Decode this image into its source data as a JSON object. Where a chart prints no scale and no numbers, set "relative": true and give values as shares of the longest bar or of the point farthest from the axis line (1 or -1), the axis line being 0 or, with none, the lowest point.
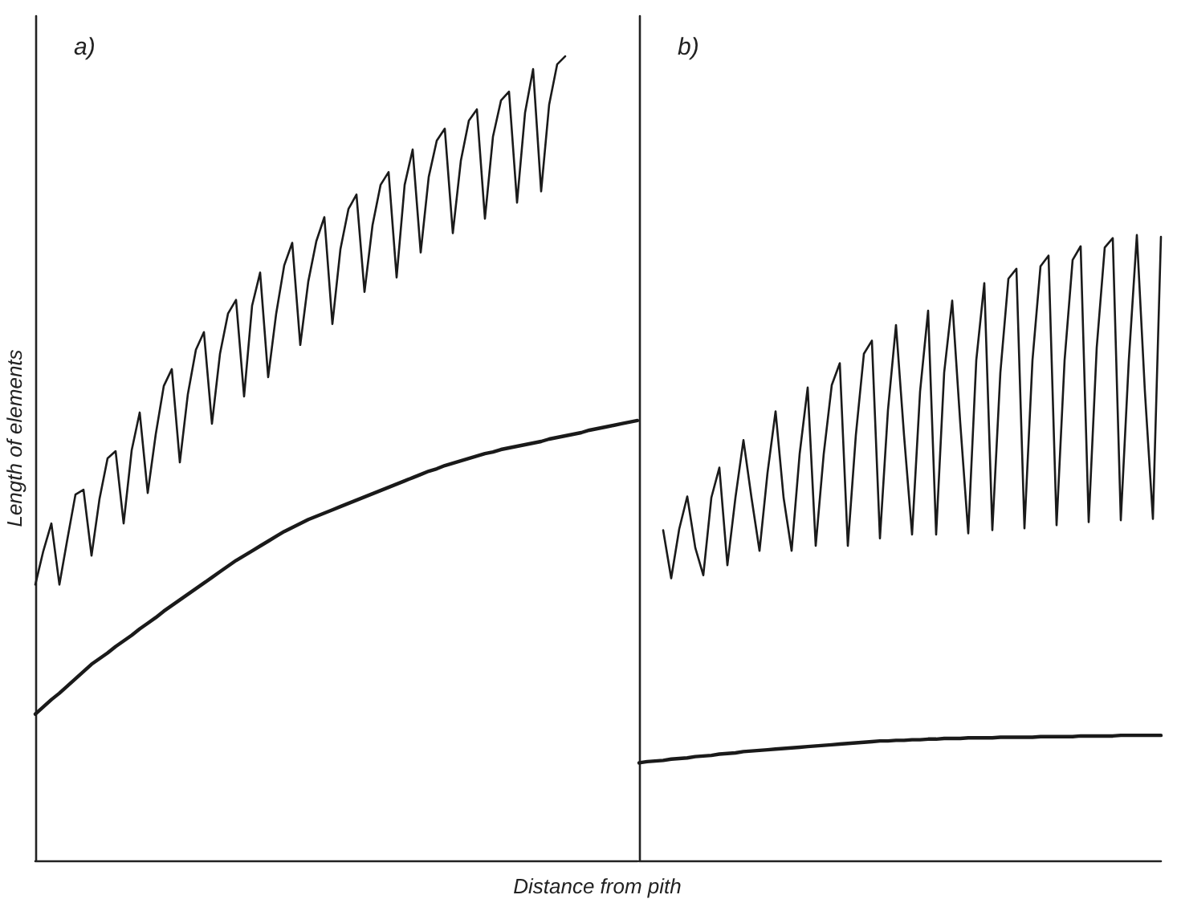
{
  "chart_data": [
    {
      "type": "line",
      "relative": true,
      "xlabel": "Distance from pith",
      "ylabel": "Length of elements",
      "annotations": [
        "a)"
      ],
      "marker": "none",
      "line_style": "solid",
      "categories": [
        null,
        null,
        null,
        null,
        null,
        null,
        null,
        null,
        null,
        null,
        null,
        null,
        null,
        null,
        null,
        null,
        null,
        null,
        null,
        null,
        null,
        null,
        null,
        null,
        null,
        null,
        null,
        null,
        null,
        null,
        null,
        null,
        null,
        null,
        null,
        null,
        null,
        null,
        null,
        null,
        null,
        null,
        null,
        null,
        null,
        null,
        null,
        null,
        null,
        null,
        null,
        null,
        null,
        null,
        null,
        null,
        null,
        null,
        null,
        null,
        null,
        null,
        null,
        null,
        null,
        null,
        null,
        null,
        null,
        null,
        null,
        null,
        null,
        null,
        null,
        null
      ],
      "series": [
        {
          "color": "#1a1a1a",
          "values": [
            0.343,
            0.385,
            0.419,
            0.343,
            0.4,
            0.455,
            0.461,
            0.379,
            0.45,
            0.5,
            0.509,
            0.419,
            0.51,
            0.557,
            0.457,
            0.53,
            0.59,
            0.611,
            0.495,
            0.58,
            0.635,
            0.657,
            0.543,
            0.63,
            0.68,
            0.697,
            0.577,
            0.69,
            0.731,
            0.601,
            0.68,
            0.74,
            0.768,
            0.641,
            0.72,
            0.77,
            0.8,
            0.667,
            0.76,
            0.81,
            0.828,
            0.707,
            0.79,
            0.84,
            0.856,
            0.725,
            0.84,
            0.884,
            0.756,
            0.85,
            0.895,
            0.91,
            0.78,
            0.87,
            0.92,
            0.934,
            0.798,
            0.9,
            0.945,
            0.956,
            0.818,
            0.93,
            0.984,
            0.832,
            0.94,
            0.99,
            1,
            null,
            null,
            null,
            null,
            null,
            null,
            null,
            null,
            null
          ]
        },
        {
          "color": "#1a1a1a",
          "values": [
            0.182,
            0.191,
            0.2,
            0.208,
            0.217,
            0.226,
            0.235,
            0.244,
            0.251,
            0.258,
            0.266,
            0.273,
            0.28,
            0.288,
            0.295,
            0.302,
            0.31,
            0.317,
            0.324,
            0.331,
            0.338,
            0.345,
            0.352,
            0.359,
            0.366,
            0.373,
            0.379,
            0.385,
            0.391,
            0.397,
            0.403,
            0.409,
            0.414,
            0.419,
            0.424,
            0.428,
            0.432,
            0.436,
            0.44,
            0.444,
            0.448,
            0.452,
            0.456,
            0.46,
            0.464,
            0.468,
            0.472,
            0.476,
            0.48,
            0.484,
            0.487,
            0.491,
            0.494,
            0.497,
            0.5,
            0.503,
            0.506,
            0.508,
            0.511,
            0.513,
            0.515,
            0.517,
            0.519,
            0.521,
            0.524,
            0.526,
            0.528,
            0.53,
            0.532,
            0.535,
            0.537,
            0.539,
            0.541,
            0.543,
            0.545,
            0.547
          ]
        }
      ]
    },
    {
      "type": "line",
      "relative": true,
      "annotations": [
        "b)"
      ],
      "marker": "none",
      "line_style": "solid",
      "categories": [
        null,
        null,
        null,
        null,
        null,
        null,
        null,
        null,
        null,
        null,
        null,
        null,
        null,
        null,
        null,
        null,
        null,
        null,
        null,
        null,
        null,
        null,
        null,
        null,
        null,
        null,
        null,
        null,
        null,
        null,
        null,
        null,
        null,
        null,
        null,
        null,
        null,
        null,
        null,
        null,
        null,
        null,
        null,
        null,
        null,
        null,
        null,
        null,
        null,
        null,
        null,
        null,
        null,
        null,
        null,
        null,
        null,
        null,
        null,
        null,
        null,
        null,
        null,
        null,
        null,
        null
      ],
      "series": [
        {
          "color": "#1a1a1a",
          "values": [
            null,
            null,
            null,
            0.528,
            0.451,
            0.53,
            0.582,
            0.5,
            0.456,
            0.58,
            0.628,
            0.472,
            0.58,
            0.672,
            0.58,
            0.495,
            0.62,
            0.718,
            0.58,
            0.495,
            0.65,
            0.756,
            0.503,
            0.65,
            0.76,
            0.795,
            0.503,
            0.68,
            0.81,
            0.831,
            0.515,
            0.72,
            0.856,
            0.68,
            0.521,
            0.75,
            0.879,
            0.521,
            0.78,
            0.895,
            0.7,
            0.523,
            0.8,
            0.923,
            0.528,
            0.78,
            0.93,
            0.946,
            0.531,
            0.8,
            0.95,
            0.967,
            0.536,
            0.8,
            0.96,
            0.982,
            0.541,
            0.82,
            0.98,
            0.995,
            0.544,
            0.8,
            1,
            0.75,
            0.546,
            0.997
          ]
        },
        {
          "color": "#1a1a1a",
          "values": [
            0.156,
            0.158,
            0.159,
            0.16,
            0.162,
            0.163,
            0.164,
            0.166,
            0.167,
            0.168,
            0.17,
            0.171,
            0.172,
            0.174,
            0.175,
            0.176,
            0.177,
            0.178,
            0.179,
            0.18,
            0.181,
            0.182,
            0.183,
            0.184,
            0.185,
            0.186,
            0.187,
            0.188,
            0.189,
            0.19,
            0.191,
            0.191,
            0.192,
            0.192,
            0.193,
            0.193,
            0.194,
            0.194,
            0.195,
            0.195,
            0.195,
            0.196,
            0.196,
            0.196,
            0.196,
            0.197,
            0.197,
            0.197,
            0.197,
            0.197,
            0.198,
            0.198,
            0.198,
            0.198,
            0.198,
            0.199,
            0.199,
            0.199,
            0.199,
            0.199,
            0.2,
            0.2,
            0.2,
            0.2,
            0.2,
            0.2
          ]
        }
      ]
    }
  ]
}
